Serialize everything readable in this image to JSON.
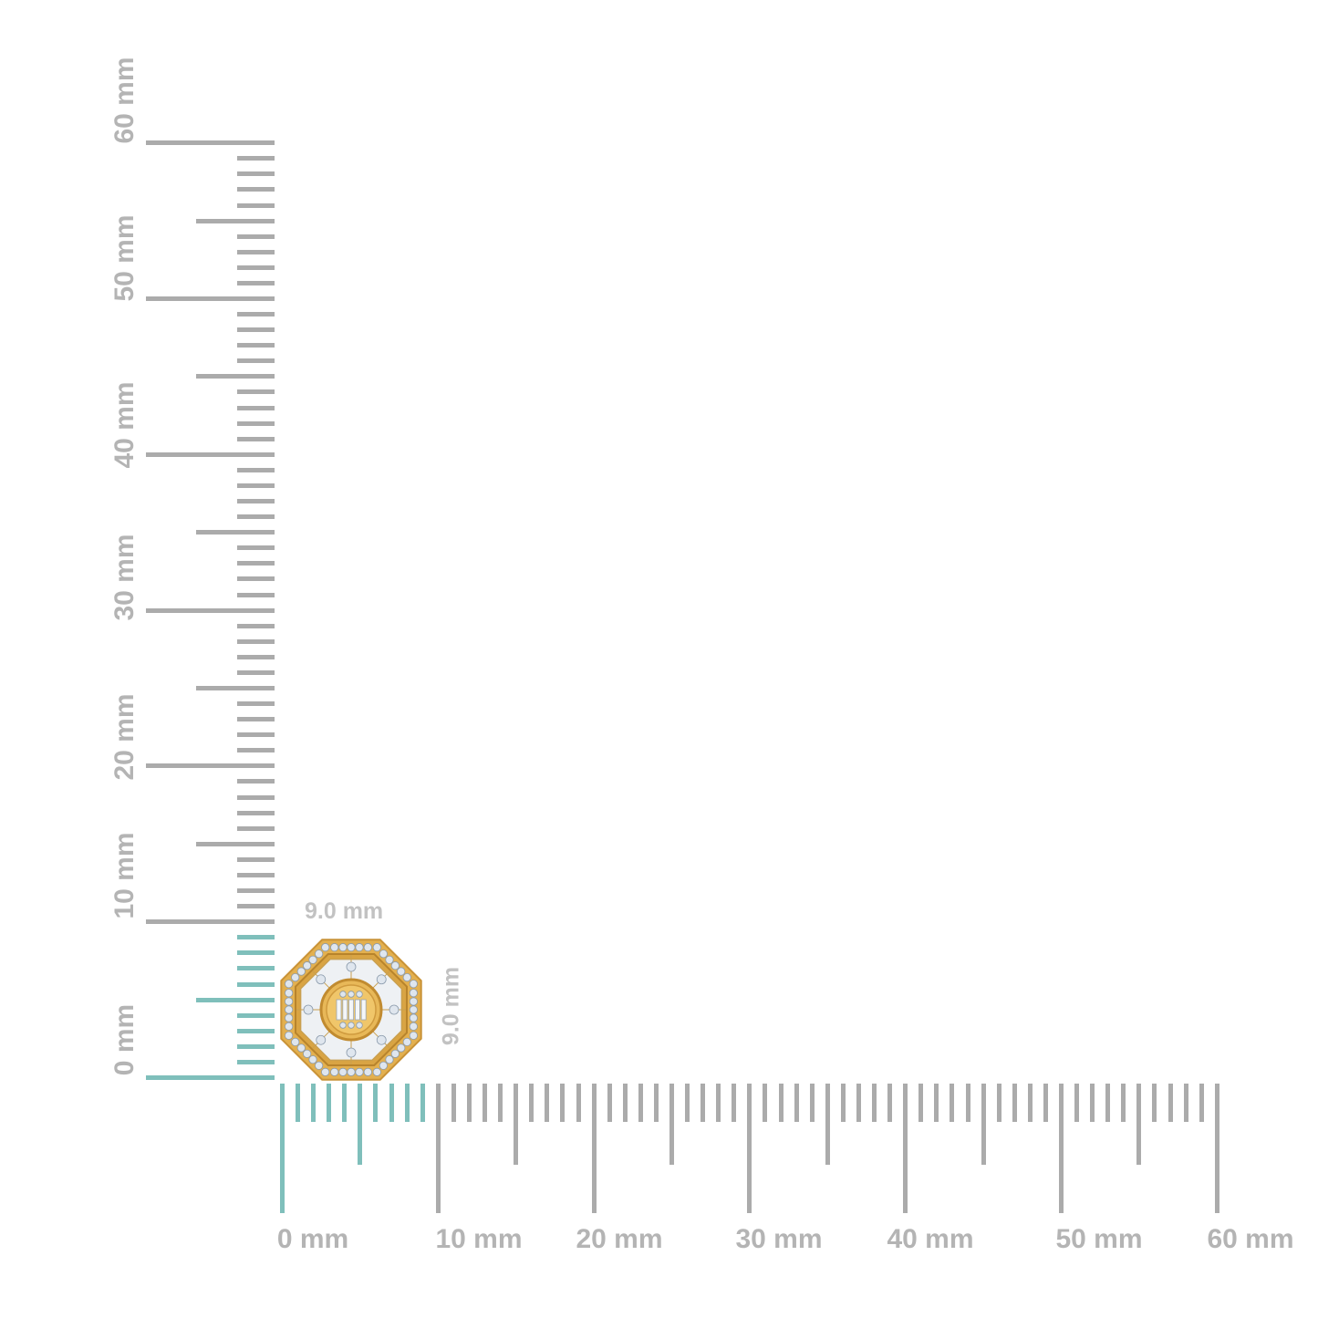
{
  "colors": {
    "tick": "#ababab",
    "highlight": "#7fbfbb",
    "label": "#b4b4b4",
    "gold": "#e3b04f",
    "diamond": "#dfe6ee"
  },
  "rulers": {
    "unit": "mm",
    "range_mm": [
      0,
      60
    ],
    "highlight_range_mm": [
      0,
      9
    ],
    "horizontal_labels": [
      "0 mm",
      "10 mm",
      "20 mm",
      "30 mm",
      "40 mm",
      "50 mm",
      "60 mm"
    ],
    "vertical_labels": [
      "0 mm",
      "10 mm",
      "20 mm",
      "30 mm",
      "40 mm",
      "50 mm",
      "60 mm"
    ]
  },
  "product": {
    "name_icon": "octagon-earring-image",
    "width_label": "9.0 mm",
    "height_label": "9.0 mm",
    "width_mm": 9.0,
    "height_mm": 9.0
  }
}
